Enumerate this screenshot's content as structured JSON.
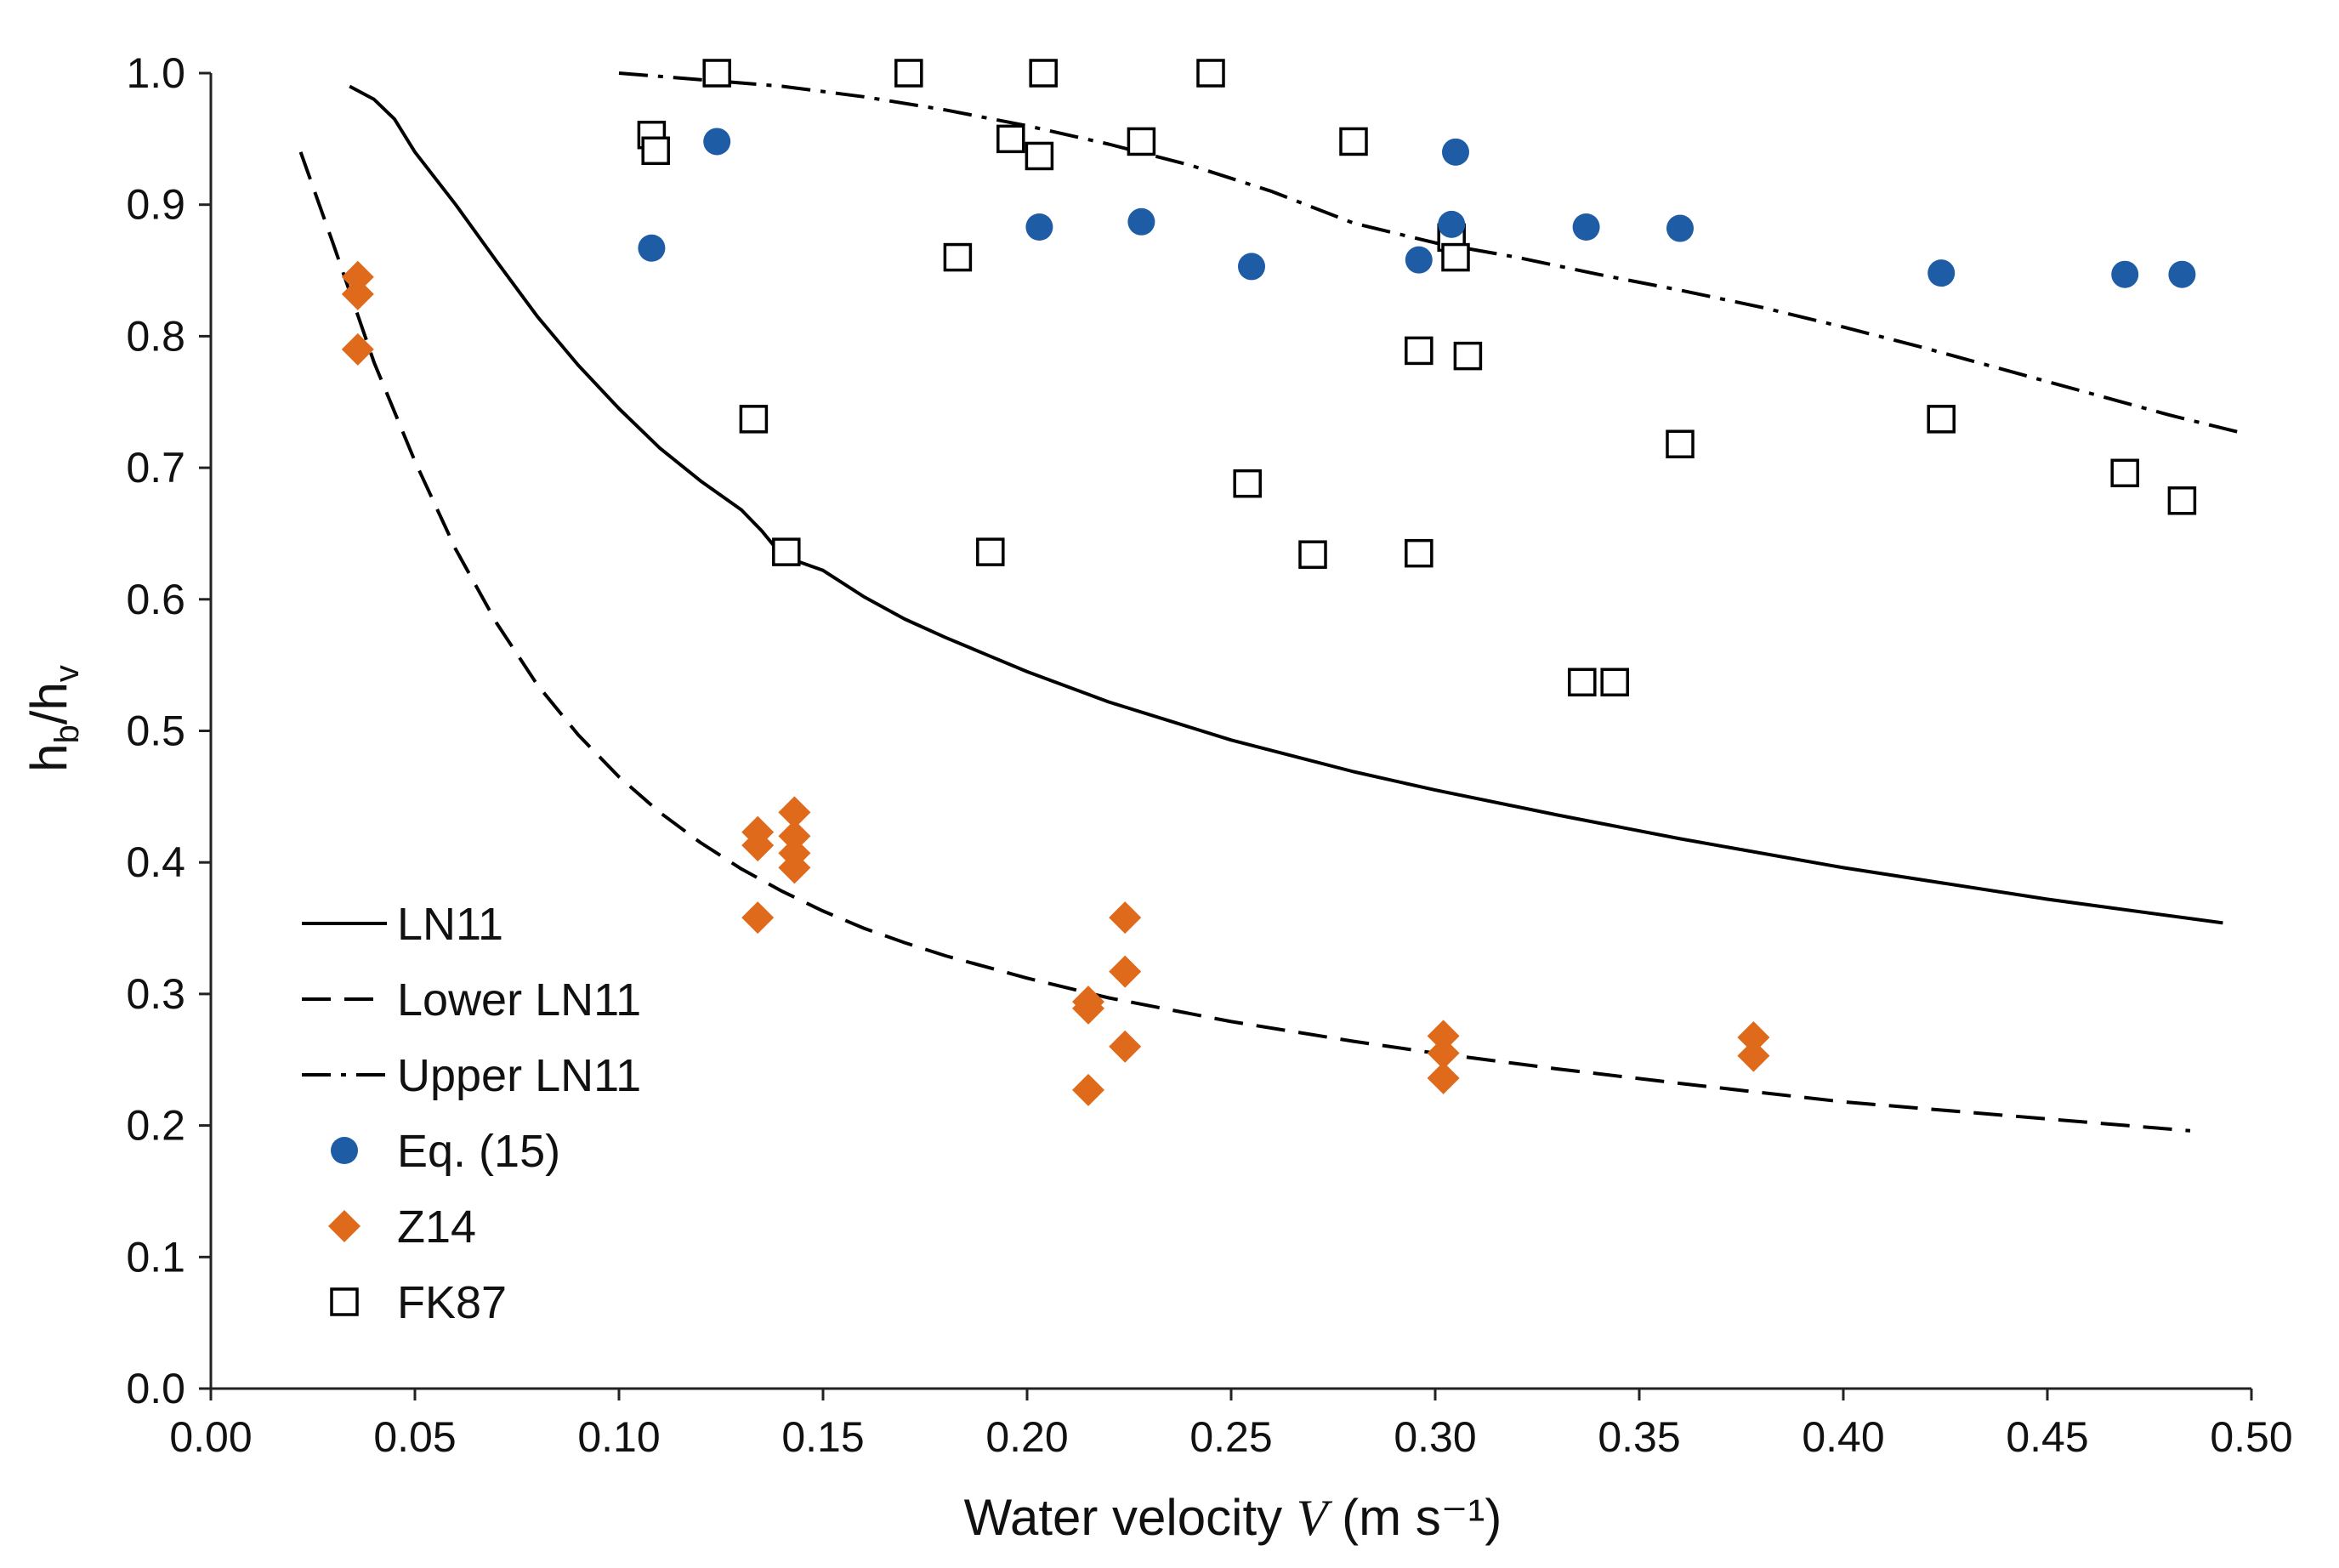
{
  "chart_data": {
    "type": "scatter",
    "title": "",
    "xlabel": "Water velocity V (m s⁻¹)",
    "xlabel_parts": {
      "prefix": "Water velocity ",
      "symbol": "V",
      "units": " (m s⁻¹)"
    },
    "ylabel": "hb/hv",
    "ylabel_parts": {
      "h1": "h",
      "sub1": "b",
      "slash": "/",
      "h2": "h",
      "sub2": "v"
    },
    "xlim": [
      0.0,
      0.5
    ],
    "ylim": [
      0.0,
      1.0
    ],
    "x_ticks": [
      "0.00",
      "0.05",
      "0.10",
      "0.15",
      "0.20",
      "0.25",
      "0.30",
      "0.35",
      "0.40",
      "0.45",
      "0.50"
    ],
    "y_ticks": [
      "0.0",
      "0.1",
      "0.2",
      "0.3",
      "0.4",
      "0.5",
      "0.6",
      "0.7",
      "0.8",
      "0.9",
      "1.0"
    ],
    "grid": false,
    "legend_position": "lower-left",
    "series": [
      {
        "name": "LN11",
        "kind": "line",
        "style": "solid",
        "color": "#000000",
        "points": [
          [
            0.034,
            0.99
          ],
          [
            0.04,
            0.98
          ],
          [
            0.045,
            0.965
          ],
          [
            0.05,
            0.94
          ],
          [
            0.06,
            0.9
          ],
          [
            0.07,
            0.857
          ],
          [
            0.08,
            0.815
          ],
          [
            0.09,
            0.778
          ],
          [
            0.1,
            0.745
          ],
          [
            0.11,
            0.715
          ],
          [
            0.12,
            0.69
          ],
          [
            0.13,
            0.668
          ],
          [
            0.135,
            0.652
          ],
          [
            0.14,
            0.633
          ],
          [
            0.15,
            0.622
          ],
          [
            0.16,
            0.602
          ],
          [
            0.17,
            0.585
          ],
          [
            0.18,
            0.571
          ],
          [
            0.19,
            0.558
          ],
          [
            0.2,
            0.545
          ],
          [
            0.22,
            0.522
          ],
          [
            0.25,
            0.493
          ],
          [
            0.28,
            0.469
          ],
          [
            0.3,
            0.455
          ],
          [
            0.33,
            0.436
          ],
          [
            0.36,
            0.418
          ],
          [
            0.4,
            0.396
          ],
          [
            0.45,
            0.372
          ],
          [
            0.493,
            0.354
          ]
        ]
      },
      {
        "name": "Lower LN11",
        "kind": "line",
        "style": "dashed",
        "color": "#000000",
        "points": [
          [
            0.022,
            0.94
          ],
          [
            0.03,
            0.87
          ],
          [
            0.04,
            0.78
          ],
          [
            0.05,
            0.705
          ],
          [
            0.06,
            0.638
          ],
          [
            0.07,
            0.582
          ],
          [
            0.08,
            0.535
          ],
          [
            0.09,
            0.497
          ],
          [
            0.1,
            0.465
          ],
          [
            0.11,
            0.438
          ],
          [
            0.12,
            0.415
          ],
          [
            0.13,
            0.395
          ],
          [
            0.14,
            0.378
          ],
          [
            0.15,
            0.363
          ],
          [
            0.16,
            0.35
          ],
          [
            0.17,
            0.339
          ],
          [
            0.18,
            0.329
          ],
          [
            0.2,
            0.312
          ],
          [
            0.22,
            0.297
          ],
          [
            0.25,
            0.279
          ],
          [
            0.28,
            0.264
          ],
          [
            0.3,
            0.255
          ],
          [
            0.33,
            0.243
          ],
          [
            0.36,
            0.232
          ],
          [
            0.4,
            0.218
          ],
          [
            0.45,
            0.205
          ],
          [
            0.485,
            0.196
          ]
        ]
      },
      {
        "name": "Upper LN11",
        "kind": "line",
        "style": "dashdot",
        "color": "#000000",
        "points": [
          [
            0.1,
            1.0
          ],
          [
            0.12,
            0.995
          ],
          [
            0.14,
            0.99
          ],
          [
            0.16,
            0.982
          ],
          [
            0.18,
            0.972
          ],
          [
            0.2,
            0.96
          ],
          [
            0.22,
            0.946
          ],
          [
            0.24,
            0.93
          ],
          [
            0.26,
            0.91
          ],
          [
            0.28,
            0.886
          ],
          [
            0.3,
            0.871
          ],
          [
            0.32,
            0.86
          ],
          [
            0.34,
            0.847
          ],
          [
            0.36,
            0.835
          ],
          [
            0.38,
            0.822
          ],
          [
            0.4,
            0.807
          ],
          [
            0.42,
            0.791
          ],
          [
            0.44,
            0.774
          ],
          [
            0.46,
            0.757
          ],
          [
            0.48,
            0.74
          ],
          [
            0.497,
            0.727
          ]
        ]
      },
      {
        "name": "Eq. (15)",
        "kind": "scatter",
        "marker": "circle",
        "color": "#1f5ca6",
        "points": [
          [
            0.108,
            0.867
          ],
          [
            0.124,
            0.948
          ],
          [
            0.203,
            0.883
          ],
          [
            0.228,
            0.887
          ],
          [
            0.255,
            0.853
          ],
          [
            0.296,
            0.858
          ],
          [
            0.304,
            0.885
          ],
          [
            0.305,
            0.94
          ],
          [
            0.337,
            0.883
          ],
          [
            0.36,
            0.882
          ],
          [
            0.424,
            0.848
          ],
          [
            0.469,
            0.847
          ],
          [
            0.483,
            0.847
          ]
        ]
      },
      {
        "name": "Z14",
        "kind": "scatter",
        "marker": "diamond",
        "color": "#e06a1b",
        "points": [
          [
            0.036,
            0.845
          ],
          [
            0.036,
            0.832
          ],
          [
            0.036,
            0.79
          ],
          [
            0.134,
            0.423
          ],
          [
            0.134,
            0.413
          ],
          [
            0.134,
            0.358
          ],
          [
            0.143,
            0.438
          ],
          [
            0.143,
            0.42
          ],
          [
            0.143,
            0.407
          ],
          [
            0.143,
            0.396
          ],
          [
            0.215,
            0.294
          ],
          [
            0.215,
            0.289
          ],
          [
            0.215,
            0.227
          ],
          [
            0.224,
            0.358
          ],
          [
            0.224,
            0.317
          ],
          [
            0.224,
            0.26
          ],
          [
            0.302,
            0.268
          ],
          [
            0.302,
            0.255
          ],
          [
            0.302,
            0.236
          ],
          [
            0.378,
            0.267
          ],
          [
            0.378,
            0.253
          ]
        ]
      },
      {
        "name": "FK87",
        "kind": "scatter",
        "marker": "square-open",
        "color": "#000000",
        "points": [
          [
            0.108,
            0.953
          ],
          [
            0.109,
            0.941
          ],
          [
            0.124,
            1.0
          ],
          [
            0.171,
            1.0
          ],
          [
            0.204,
            1.0
          ],
          [
            0.245,
            1.0
          ],
          [
            0.133,
            0.737
          ],
          [
            0.141,
            0.636
          ],
          [
            0.183,
            0.86
          ],
          [
            0.196,
            0.95
          ],
          [
            0.203,
            0.937
          ],
          [
            0.191,
            0.636
          ],
          [
            0.228,
            0.948
          ],
          [
            0.254,
            0.688
          ],
          [
            0.27,
            0.634
          ],
          [
            0.28,
            0.948
          ],
          [
            0.296,
            0.789
          ],
          [
            0.296,
            0.635
          ],
          [
            0.304,
            0.875
          ],
          [
            0.305,
            0.86
          ],
          [
            0.308,
            0.785
          ],
          [
            0.336,
            0.537
          ],
          [
            0.344,
            0.537
          ],
          [
            0.36,
            0.718
          ],
          [
            0.424,
            0.737
          ],
          [
            0.469,
            0.696
          ],
          [
            0.483,
            0.675
          ]
        ]
      }
    ]
  }
}
